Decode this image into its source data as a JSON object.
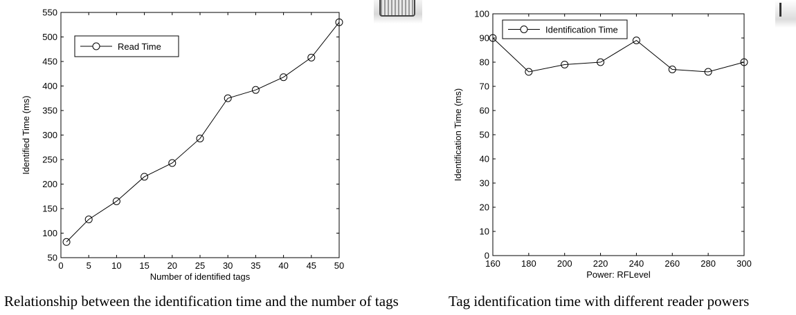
{
  "captions": {
    "left": "Relationship between the identification time and the number of tags",
    "right": "Tag identification time with different reader powers"
  },
  "chart_data": [
    {
      "type": "line",
      "title": "",
      "xlabel": "Number of identified tags",
      "ylabel": "Identified Time (ms)",
      "xlim": [
        0,
        50
      ],
      "ylim": [
        50,
        550
      ],
      "xticks": [
        0,
        5,
        10,
        15,
        20,
        25,
        30,
        35,
        40,
        45,
        50
      ],
      "yticks": [
        50,
        100,
        150,
        200,
        250,
        300,
        350,
        400,
        450,
        500,
        550
      ],
      "grid": false,
      "legend_position": "top-left",
      "marker": "circle",
      "series": [
        {
          "name": "Read Time",
          "color": "#000000",
          "x": [
            1,
            5,
            10,
            15,
            20,
            25,
            30,
            35,
            40,
            45,
            50
          ],
          "y": [
            82,
            128,
            165,
            215,
            243,
            293,
            375,
            392,
            418,
            458,
            530
          ]
        }
      ]
    },
    {
      "type": "line",
      "title": "",
      "xlabel": "Power: RFLevel",
      "ylabel": "Identification Time (ms)",
      "xlim": [
        160,
        300
      ],
      "ylim": [
        0,
        100
      ],
      "xticks": [
        160,
        180,
        200,
        220,
        240,
        260,
        280,
        300
      ],
      "yticks": [
        0,
        10,
        20,
        30,
        40,
        50,
        60,
        70,
        80,
        90,
        100
      ],
      "grid": false,
      "legend_position": "top-left",
      "marker": "circle",
      "series": [
        {
          "name": "Identification Time",
          "color": "#000000",
          "x": [
            160,
            180,
            200,
            220,
            240,
            260,
            280,
            300
          ],
          "y": [
            90,
            76,
            79,
            80,
            89,
            77,
            76,
            80
          ]
        }
      ]
    }
  ]
}
